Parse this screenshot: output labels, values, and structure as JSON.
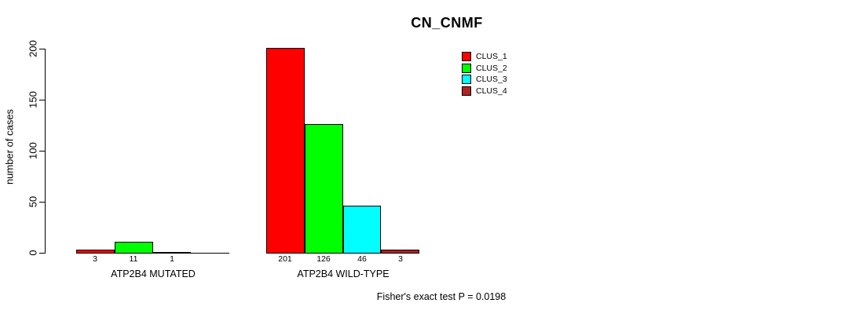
{
  "window": {
    "background": "#FFFFFF"
  },
  "chart_data": {
    "type": "bar",
    "title": "CN_CNMF",
    "ylabel": "number of cases",
    "xlabel": "",
    "ylim": [
      0,
      200
    ],
    "yticks": [
      0,
      50,
      100,
      150,
      200
    ],
    "grid": false,
    "legend_position": "top-right-inside",
    "bar_outline_color": "#000000",
    "legend": [
      {
        "label": "CLUS_1",
        "color": "#FF0000"
      },
      {
        "label": "CLUS_2",
        "color": "#00FF00"
      },
      {
        "label": "CLUS_3",
        "color": "#00FFFF"
      },
      {
        "label": "CLUS_4",
        "color": "#B22222"
      }
    ],
    "groups": [
      {
        "label": "ATP2B4 MUTATED",
        "values": [
          3,
          11,
          1,
          0
        ],
        "value_labels": [
          "3",
          "11",
          "1",
          ""
        ]
      },
      {
        "label": "ATP2B4 WILD-TYPE",
        "values": [
          201,
          126,
          46,
          3
        ],
        "value_labels": [
          "201",
          "126",
          "46",
          "3"
        ]
      }
    ],
    "footnote": "Fisher's exact test P = 0.0198"
  }
}
